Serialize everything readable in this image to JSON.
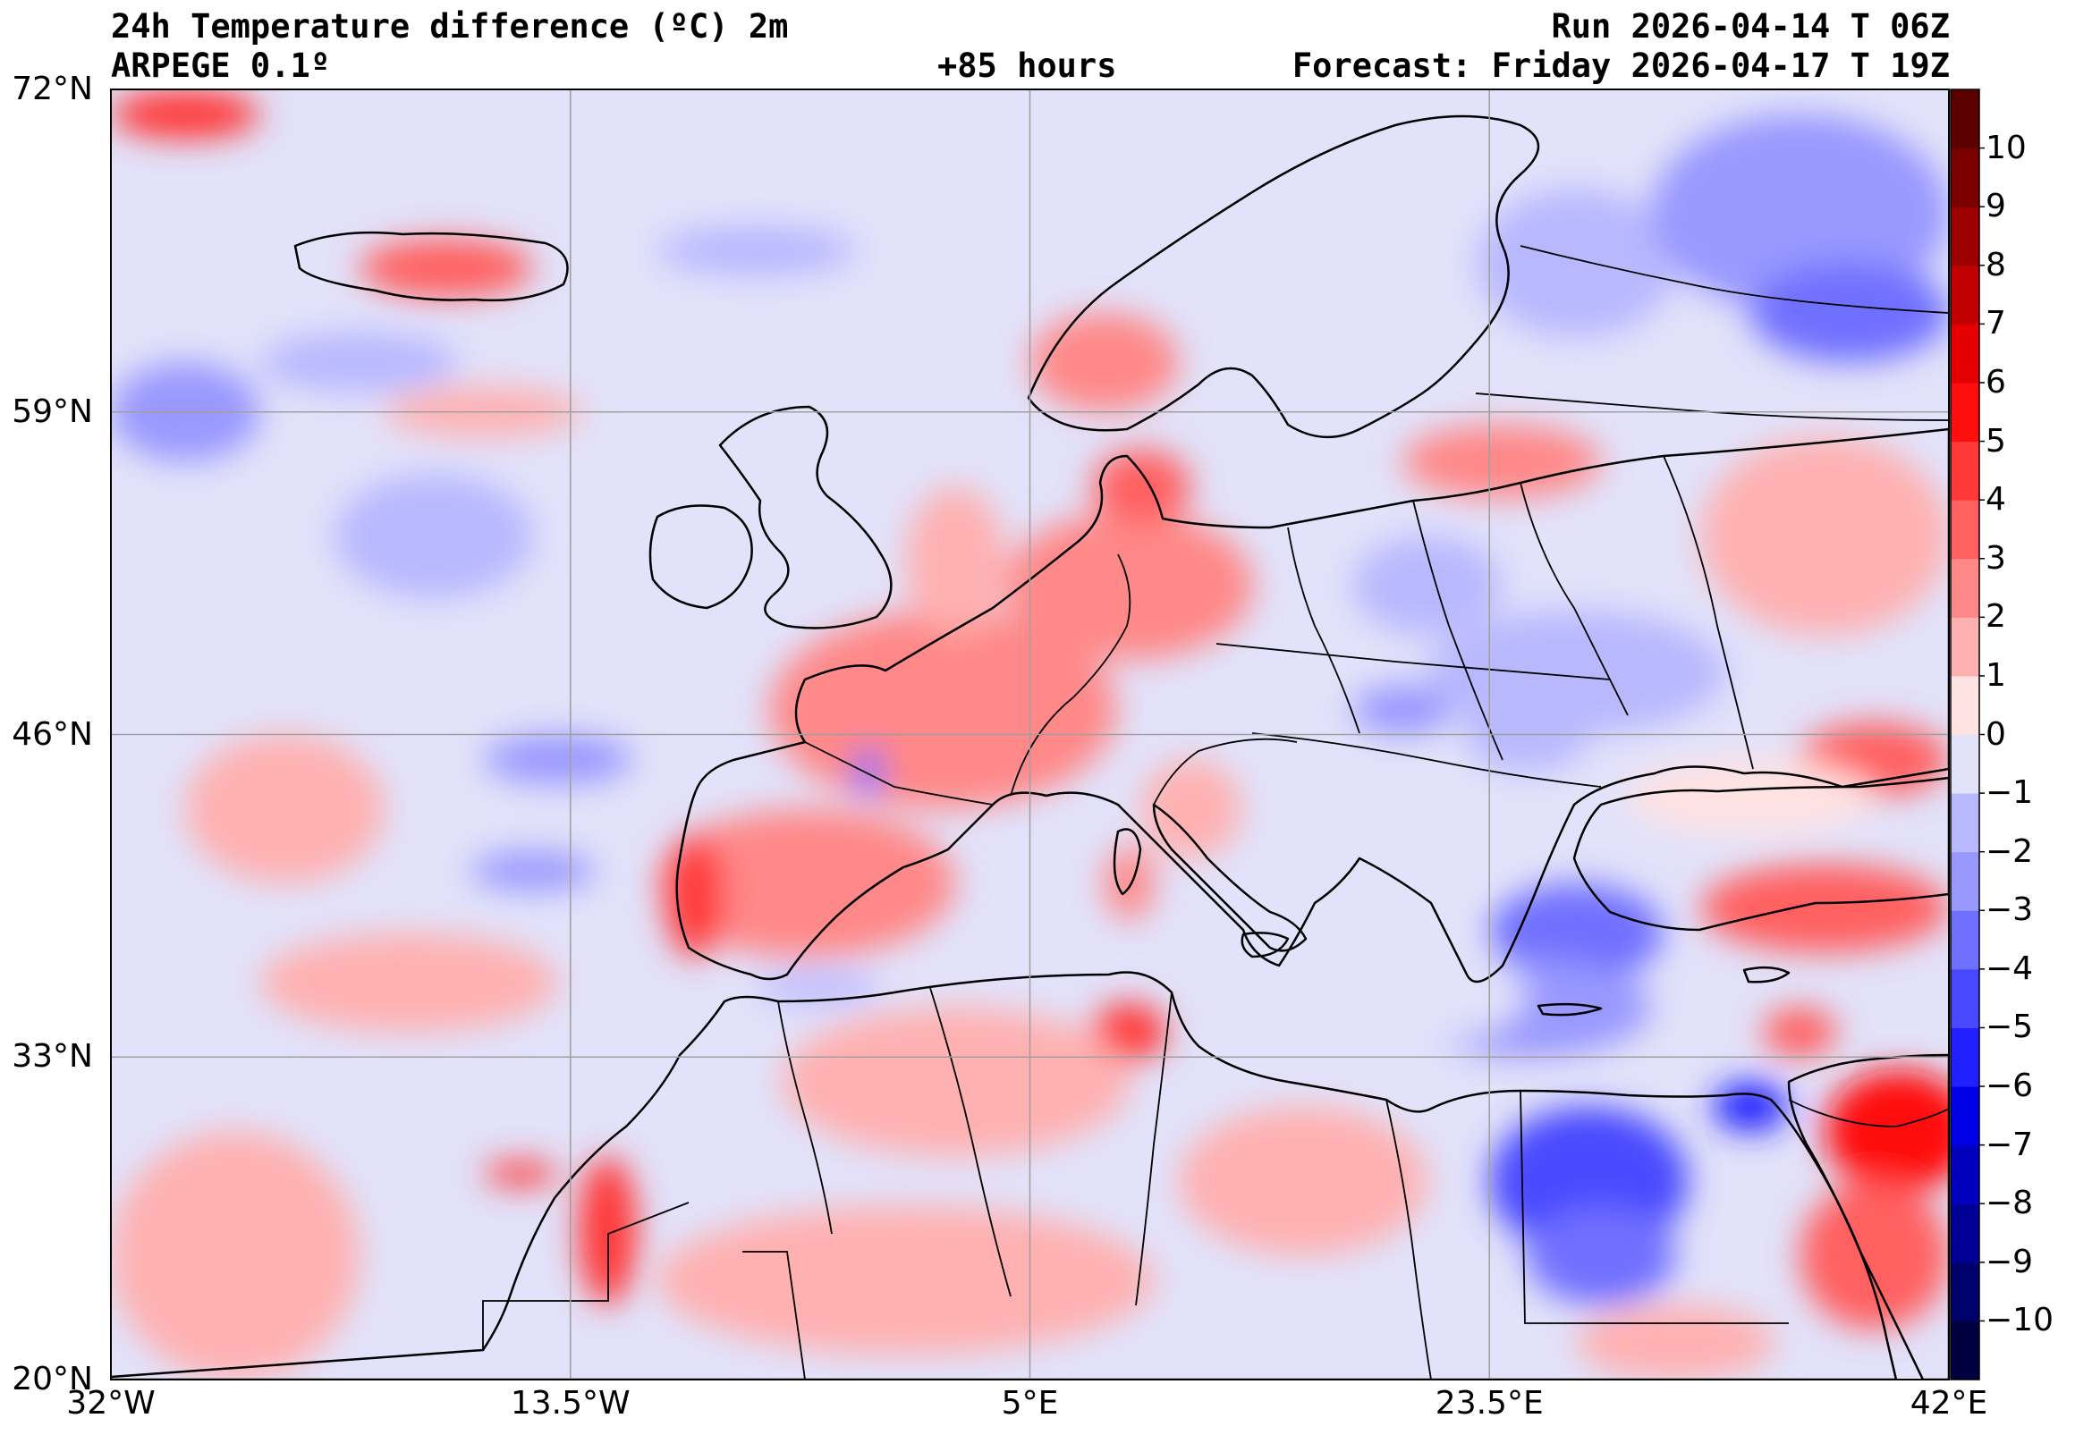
{
  "header": {
    "title": "24h Temperature difference (ºC) 2m",
    "model": "ARPEGE 0.1º",
    "lead_time": "+85 hours",
    "run": "Run 2026-04-14 T 06Z",
    "forecast": "Forecast: Friday 2026-04-17 T 19Z"
  },
  "map": {
    "lat_range": [
      20,
      72
    ],
    "lon_range": [
      -32,
      42
    ],
    "lat_ticks": [
      {
        "value": 72,
        "label": "72°N"
      },
      {
        "value": 59,
        "label": "59°N"
      },
      {
        "value": 46,
        "label": "46°N"
      },
      {
        "value": 33,
        "label": "33°N"
      },
      {
        "value": 20,
        "label": "20°N"
      }
    ],
    "lon_ticks": [
      {
        "value": -32,
        "label": "32°W"
      },
      {
        "value": -13.5,
        "label": "13.5°W"
      },
      {
        "value": 5,
        "label": "5°E"
      },
      {
        "value": 23.5,
        "label": "23.5°E"
      },
      {
        "value": 42,
        "label": "42°E"
      }
    ],
    "grid": true,
    "coastlines": true,
    "borders": true
  },
  "colorbar": {
    "units": "ºC",
    "levels": [
      -11,
      -10,
      -9,
      -8,
      -7,
      -6,
      -5,
      -4,
      -3,
      -2,
      -1,
      0,
      1,
      2,
      3,
      4,
      5,
      6,
      7,
      8,
      9,
      10,
      11
    ],
    "colors": [
      "#000040",
      "#00006a",
      "#000094",
      "#0000bd",
      "#0000e6",
      "#2020ff",
      "#4848ff",
      "#7070ff",
      "#9898ff",
      "#b8b8ff",
      "#e2e2fa",
      "#ffe2e2",
      "#ffb0b0",
      "#ff8888",
      "#ff6060",
      "#ff3838",
      "#ff0e0e",
      "#e40000",
      "#c00000",
      "#9c0000",
      "#7a0000",
      "#5a0000"
    ],
    "tick_labels": [
      {
        "value": 10,
        "label": "10"
      },
      {
        "value": 9,
        "label": "9"
      },
      {
        "value": 8,
        "label": "8"
      },
      {
        "value": 7,
        "label": "7"
      },
      {
        "value": 6,
        "label": "6"
      },
      {
        "value": 5,
        "label": "5"
      },
      {
        "value": 4,
        "label": "4"
      },
      {
        "value": 3,
        "label": "3"
      },
      {
        "value": 2,
        "label": "2"
      },
      {
        "value": 1,
        "label": "1"
      },
      {
        "value": 0,
        "label": "0"
      },
      {
        "value": -1,
        "label": "−1"
      },
      {
        "value": -2,
        "label": "−2"
      },
      {
        "value": -3,
        "label": "−3"
      },
      {
        "value": -4,
        "label": "−4"
      },
      {
        "value": -5,
        "label": "−5"
      },
      {
        "value": -6,
        "label": "−6"
      },
      {
        "value": -7,
        "label": "−7"
      },
      {
        "value": -8,
        "label": "−8"
      },
      {
        "value": -9,
        "label": "−9"
      },
      {
        "value": -10,
        "label": "−10"
      }
    ]
  },
  "field_regions": [
    {
      "name": "france-warm",
      "lon": 1.5,
      "lat": 47,
      "rlon": 7,
      "rlat": 4,
      "value": 2.5
    },
    {
      "name": "iberia-warm",
      "lon": -4,
      "lat": 40,
      "rlon": 6,
      "rlat": 3,
      "value": 2
    },
    {
      "name": "portugal-warm",
      "lon": -8.5,
      "lat": 39.5,
      "rlon": 1.2,
      "rlat": 2.5,
      "value": 4
    },
    {
      "name": "germany-warm",
      "lon": 9,
      "lat": 52,
      "rlon": 5,
      "rlat": 3,
      "value": 2
    },
    {
      "name": "denmark-warm",
      "lon": 9.5,
      "lat": 56,
      "rlon": 2,
      "rlat": 1.5,
      "value": 3
    },
    {
      "name": "norway-warm",
      "lon": 8,
      "lat": 61,
      "rlon": 3,
      "rlat": 2,
      "value": 2
    },
    {
      "name": "finland-cool",
      "lon": 27,
      "lat": 65,
      "rlon": 4,
      "rlat": 3,
      "value": -1.5
    },
    {
      "name": "russia-north-cool",
      "lon": 36,
      "lat": 67,
      "rlon": 6,
      "rlat": 4,
      "value": -2.5
    },
    {
      "name": "kola-cool",
      "lon": 38,
      "lat": 63,
      "rlon": 4,
      "rlat": 2,
      "value": -3.5
    },
    {
      "name": "poland-cool",
      "lon": 21,
      "lat": 52,
      "rlon": 3,
      "rlat": 2,
      "value": -1.5
    },
    {
      "name": "ukraine-cool",
      "lon": 27,
      "lat": 48.5,
      "rlon": 6,
      "rlat": 2.5,
      "value": -1.5
    },
    {
      "name": "baltic-warm",
      "lon": 24,
      "lat": 57,
      "rlon": 4,
      "rlat": 1.5,
      "value": 2
    },
    {
      "name": "russia-warm",
      "lon": 37,
      "lat": 54,
      "rlon": 5,
      "rlat": 4,
      "value": 1.5
    },
    {
      "name": "caucasus-warm",
      "lon": 39,
      "lat": 45,
      "rlon": 3,
      "rlat": 1.5,
      "value": 3
    },
    {
      "name": "turkey-east-warm",
      "lon": 37,
      "lat": 39,
      "rlon": 5,
      "rlat": 1.8,
      "value": 3.5
    },
    {
      "name": "aegean-cool",
      "lon": 27,
      "lat": 38,
      "rlon": 3.5,
      "rlat": 2,
      "value": -3.5
    },
    {
      "name": "crete-sea-cool",
      "lon": 25,
      "lat": 35,
      "rlon": 5,
      "rlat": 2,
      "value": -2.5
    },
    {
      "name": "egypt-cool",
      "lon": 27.5,
      "lat": 28,
      "rlon": 4,
      "rlat": 3,
      "value": -5
    },
    {
      "name": "egypt-south-cool",
      "lon": 28,
      "lat": 25,
      "rlon": 3,
      "rlat": 2,
      "value": -3.5
    },
    {
      "name": "sinai-cool",
      "lon": 34,
      "lat": 31,
      "rlon": 1.5,
      "rlat": 1,
      "value": -6
    },
    {
      "name": "arabia-warm",
      "lon": 40,
      "lat": 30,
      "rlon": 3,
      "rlat": 2.5,
      "value": 5.5
    },
    {
      "name": "arabia-south-warm",
      "lon": 39,
      "lat": 25,
      "rlon": 3,
      "rlat": 3,
      "value": 3
    },
    {
      "name": "sudan-warm",
      "lon": 31,
      "lat": 21.5,
      "rlon": 4,
      "rlat": 1.5,
      "value": 1.5
    },
    {
      "name": "tunisia-warm",
      "lon": 9,
      "lat": 34,
      "rlon": 1.5,
      "rlat": 1.2,
      "value": 4
    },
    {
      "name": "algeria-warm",
      "lon": 2,
      "lat": 32,
      "rlon": 7,
      "rlat": 3,
      "value": 1.5
    },
    {
      "name": "sahara-warm",
      "lon": 0,
      "lat": 24,
      "rlon": 10,
      "rlat": 3,
      "value": 1.5
    },
    {
      "name": "libya-warm",
      "lon": 16,
      "lat": 28,
      "rlon": 5,
      "rlat": 3,
      "value": 1
    },
    {
      "name": "morocco-coast-warm",
      "lon": -12,
      "lat": 26,
      "rlon": 1.2,
      "rlat": 3,
      "value": 4
    },
    {
      "name": "canaries-warm",
      "lon": -15.5,
      "lat": 28.3,
      "rlon": 1.5,
      "rlat": 0.5,
      "value": 4
    },
    {
      "name": "gibraltar-cool",
      "lon": -3.5,
      "lat": 35.8,
      "rlon": 2.5,
      "rlat": 0.6,
      "value": -2
    },
    {
      "name": "biscay-cool",
      "lon": -1.5,
      "lat": 44.5,
      "rlon": 0.6,
      "rlat": 1,
      "value": -4
    },
    {
      "name": "atlantic-cool-1",
      "lon": -14,
      "lat": 45,
      "rlon": 3,
      "rlat": 1,
      "value": -2.5
    },
    {
      "name": "atlantic-cool-2",
      "lon": -19,
      "lat": 54,
      "rlon": 4,
      "rlat": 2.5,
      "value": -1.5
    },
    {
      "name": "atlantic-cool-3",
      "lon": -15,
      "lat": 40.5,
      "rlon": 2.5,
      "rlat": 0.8,
      "value": -2.5
    },
    {
      "name": "atlantic-cool-4",
      "lon": -29,
      "lat": 59,
      "rlon": 3,
      "rlat": 2,
      "value": -2.5
    },
    {
      "name": "atlantic-cool-5",
      "lon": -22,
      "lat": 61,
      "rlon": 4,
      "rlat": 1.2,
      "value": -1.5
    },
    {
      "name": "norwegian-sea-cool",
      "lon": -6,
      "lat": 65.5,
      "rlon": 4,
      "rlat": 1,
      "value": -1.5
    },
    {
      "name": "iceland-warm",
      "lon": -18.5,
      "lat": 64.8,
      "rlon": 3.5,
      "rlat": 1.2,
      "value": 3
    },
    {
      "name": "greenland-warm",
      "lon": -29,
      "lat": 71,
      "rlon": 3,
      "rlat": 1,
      "value": 4
    },
    {
      "name": "atlantic-warm-1",
      "lon": -17,
      "lat": 59,
      "rlon": 4,
      "rlat": 1,
      "value": 1
    },
    {
      "name": "atlantic-warm-2",
      "lon": -25,
      "lat": 43,
      "rlon": 4,
      "rlat": 3,
      "value": 1
    },
    {
      "name": "atlantic-warm-3",
      "lon": -20,
      "lat": 36,
      "rlon": 6,
      "rlat": 2,
      "value": 1
    },
    {
      "name": "atlantic-warm-4",
      "lon": -27,
      "lat": 25,
      "rlon": 5,
      "rlat": 5,
      "value": 1
    },
    {
      "name": "north-sea-warm",
      "lon": 2,
      "lat": 53,
      "rlon": 2,
      "rlat": 3,
      "value": 1
    },
    {
      "name": "italy-warm",
      "lon": 11.5,
      "lat": 43,
      "rlon": 2,
      "rlat": 2,
      "value": 1
    },
    {
      "name": "balkans-mixed",
      "lon": 21,
      "lat": 42,
      "rlon": 3,
      "rlat": 2,
      "value": -1
    },
    {
      "name": "romania-cool",
      "lon": 25,
      "lat": 46,
      "rlon": 2.5,
      "rlat": 1.5,
      "value": -2
    },
    {
      "name": "hungary-cool",
      "lon": 20,
      "lat": 47,
      "rlon": 2,
      "rlat": 1,
      "value": -2.5
    },
    {
      "name": "black-sea-warm",
      "lon": 34,
      "lat": 43.5,
      "rlon": 5,
      "rlat": 1.5,
      "value": 0.8
    },
    {
      "name": "med-east-cool",
      "lon": 20,
      "lat": 35.5,
      "rlon": 5,
      "rlat": 2,
      "value": -1
    },
    {
      "name": "levant-warm",
      "lon": 36,
      "lat": 34,
      "rlon": 1.5,
      "rlat": 1,
      "value": 3
    },
    {
      "name": "sardinia-warm",
      "lon": 9,
      "lat": 40,
      "rlon": 1,
      "rlat": 1.5,
      "value": 2
    }
  ]
}
